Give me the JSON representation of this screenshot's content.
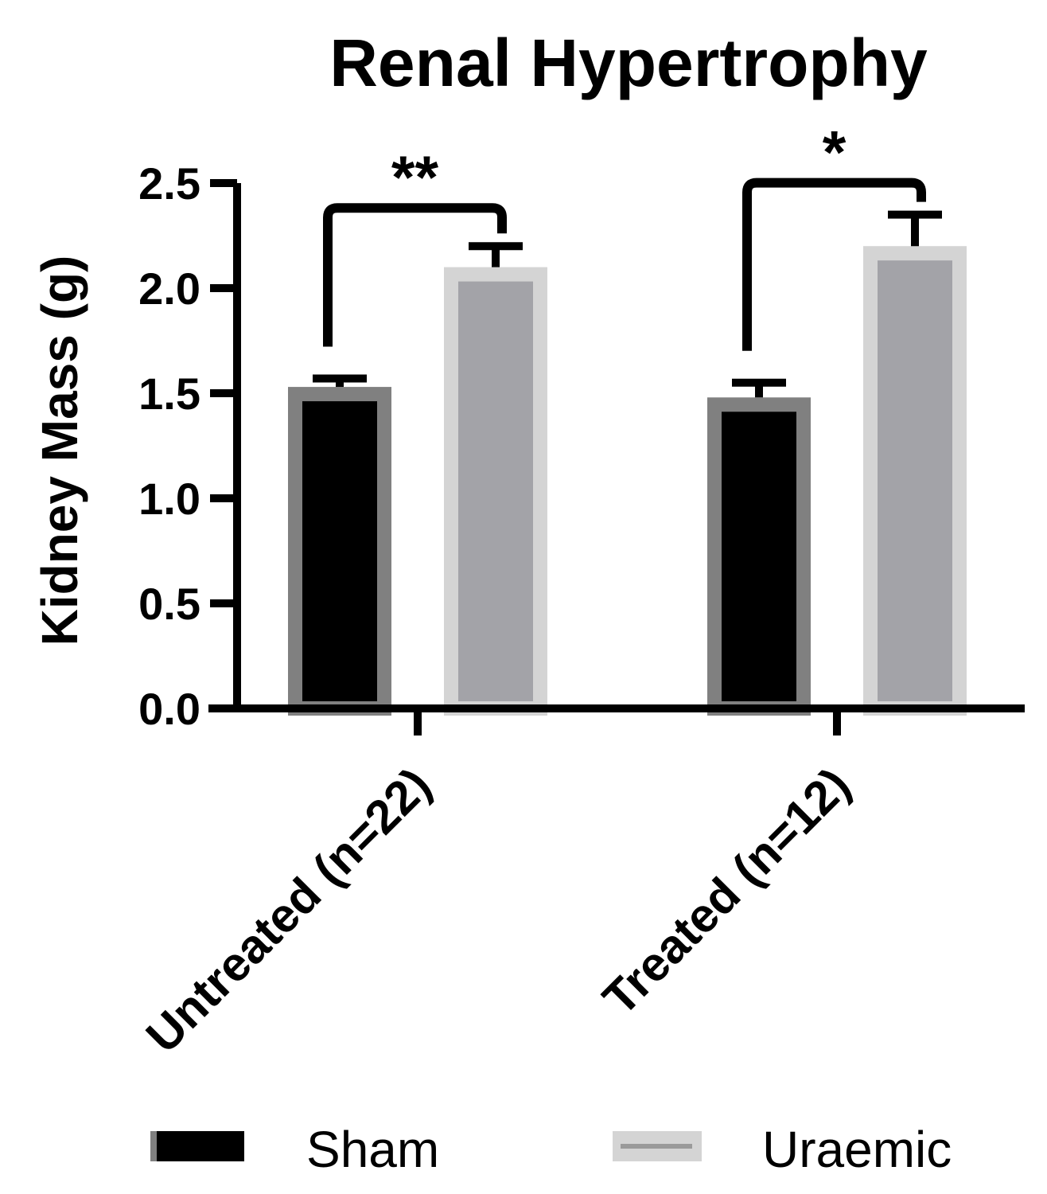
{
  "chart_data": {
    "type": "bar",
    "title": "Renal Hypertrophy",
    "xlabel": "",
    "ylabel": "Kidney Mass (g)",
    "ylim": [
      0,
      2.5
    ],
    "yticks": [
      "0.0",
      "0.5",
      "1.0",
      "1.5",
      "2.0",
      "2.5"
    ],
    "ytick_values": [
      0,
      0.5,
      1.0,
      1.5,
      2.0,
      2.5
    ],
    "categories": [
      "Untreated (n=22)",
      "Treated (n=12)"
    ],
    "series": [
      {
        "name": "Sham",
        "values": [
          1.53,
          1.48
        ],
        "errors": [
          0.04,
          0.07
        ]
      },
      {
        "name": "Uraemic",
        "values": [
          2.1,
          2.2
        ],
        "errors": [
          0.1,
          0.15
        ]
      }
    ],
    "significance": [
      "**",
      "*"
    ],
    "legend_position": "bottom",
    "grid": false,
    "colors": {
      "sham_fill": "#000000",
      "sham_border": "#808080",
      "uraemic_fill": "#a3a3a8",
      "uraemic_border": "#d4d4d4",
      "axis": "#000000"
    }
  }
}
